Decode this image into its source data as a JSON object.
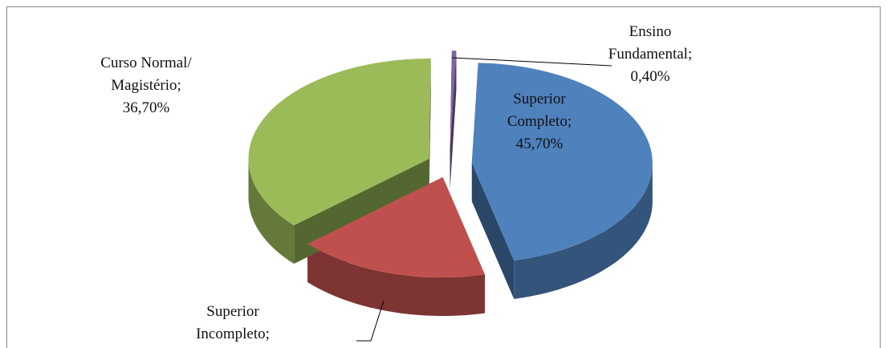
{
  "chart_data": {
    "type": "pie",
    "categories": [
      "Superior Completo;",
      "Superior Incompleto;",
      "Curso Normal/ Magistério;",
      "Ensino Fundamental;"
    ],
    "values": [
      45.7,
      17.2,
      36.7,
      0.4
    ],
    "value_labels": [
      "45,70%",
      null,
      "36,70%",
      "0,40%"
    ],
    "colors": [
      "#4f81bd",
      "#c0504d",
      "#9bbb59",
      "#8064a2"
    ]
  }
}
